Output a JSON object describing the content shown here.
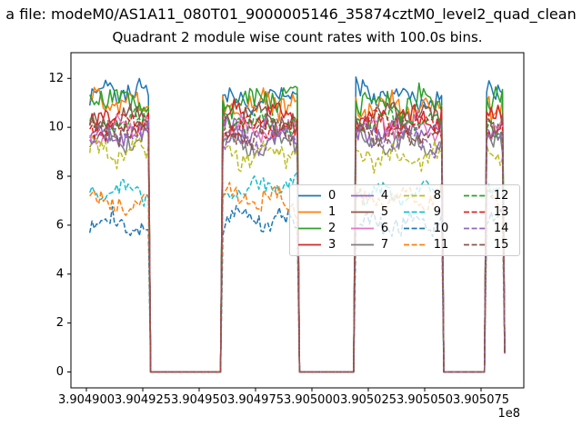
{
  "figure": {
    "suptitle": "a file: modeM0/AS1A11_080T01_9000005146_35874cztM0_level2_quad_clean",
    "title": "Quadrant 2 module wise count rates with 100.0s bins."
  },
  "chart_data": {
    "type": "line",
    "title": "Quadrant 2 module wise count rates with 100.0s bins.",
    "xlabel": "",
    "ylabel": "",
    "grid": false,
    "x_axis": {
      "lim": [
        390489315,
        390509395
      ],
      "ticks": [
        390490000,
        390492500,
        390495000,
        390497500,
        390500000,
        390502500,
        390505000,
        390507500
      ],
      "tick_labels": [
        "3.904900",
        "3.904925",
        "3.904950",
        "3.904975",
        "3.905000",
        "3.905025",
        "3.905050",
        "3.905075"
      ],
      "offset_label": "1e8"
    },
    "y_axis": {
      "lim": [
        -0.65,
        13.05
      ],
      "ticks": [
        0,
        2,
        4,
        6,
        8,
        10,
        12
      ],
      "tick_labels": [
        "0",
        "2",
        "4",
        "6",
        "8",
        "10",
        "12"
      ]
    },
    "legend": {
      "columns": 4,
      "location": "center",
      "labels": [
        "0",
        "1",
        "2",
        "3",
        "4",
        "5",
        "6",
        "7",
        "8",
        "9",
        "10",
        "11",
        "12",
        "13",
        "14",
        "15"
      ]
    },
    "bin_seconds": 100.0,
    "time_range_s": [
      390490150,
      390508550
    ],
    "on_intervals_s": [
      [
        390490150,
        390492750
      ],
      [
        390496050,
        390499350
      ],
      [
        390501950,
        390505750
      ],
      [
        390507750,
        390508450
      ]
    ],
    "off_value": 0.0,
    "final_partial_bin": {
      "t_s": 390508550,
      "value": 0.8
    },
    "series": [
      {
        "label": "0",
        "color": "#1f77b4",
        "line_style": "solid",
        "on_mean_rate": 11.3,
        "on_scatter": 0.45
      },
      {
        "label": "1",
        "color": "#ff7f0e",
        "line_style": "solid",
        "on_mean_rate": 10.9,
        "on_scatter": 0.45
      },
      {
        "label": "2",
        "color": "#2ca02c",
        "line_style": "solid",
        "on_mean_rate": 11.1,
        "on_scatter": 0.45
      },
      {
        "label": "3",
        "color": "#d62728",
        "line_style": "solid",
        "on_mean_rate": 10.3,
        "on_scatter": 0.45
      },
      {
        "label": "4",
        "color": "#9467bd",
        "line_style": "solid",
        "on_mean_rate": 9.8,
        "on_scatter": 0.4
      },
      {
        "label": "5",
        "color": "#8c564b",
        "line_style": "solid",
        "on_mean_rate": 10.4,
        "on_scatter": 0.4
      },
      {
        "label": "6",
        "color": "#e377c2",
        "line_style": "solid",
        "on_mean_rate": 10.0,
        "on_scatter": 0.4
      },
      {
        "label": "7",
        "color": "#7f7f7f",
        "line_style": "solid",
        "on_mean_rate": 9.4,
        "on_scatter": 0.4
      },
      {
        "label": "8",
        "color": "#bcbd22",
        "line_style": "dashed",
        "on_mean_rate": 8.9,
        "on_scatter": 0.4
      },
      {
        "label": "9",
        "color": "#17becf",
        "line_style": "dashed",
        "on_mean_rate": 7.4,
        "on_scatter": 0.35
      },
      {
        "label": "10",
        "color": "#1f77b4",
        "line_style": "dashed",
        "on_mean_rate": 6.1,
        "on_scatter": 0.4
      },
      {
        "label": "11",
        "color": "#ff7f0e",
        "line_style": "dashed",
        "on_mean_rate": 7.0,
        "on_scatter": 0.4
      },
      {
        "label": "12",
        "color": "#2ca02c",
        "line_style": "dashed",
        "on_mean_rate": 10.2,
        "on_scatter": 0.4
      },
      {
        "label": "13",
        "color": "#d62728",
        "line_style": "dashed",
        "on_mean_rate": 10.1,
        "on_scatter": 0.4
      },
      {
        "label": "14",
        "color": "#9467bd",
        "line_style": "dashed",
        "on_mean_rate": 9.6,
        "on_scatter": 0.4
      },
      {
        "label": "15",
        "color": "#8c564b",
        "line_style": "dashed",
        "on_mean_rate": 9.8,
        "on_scatter": 0.4
      }
    ]
  }
}
